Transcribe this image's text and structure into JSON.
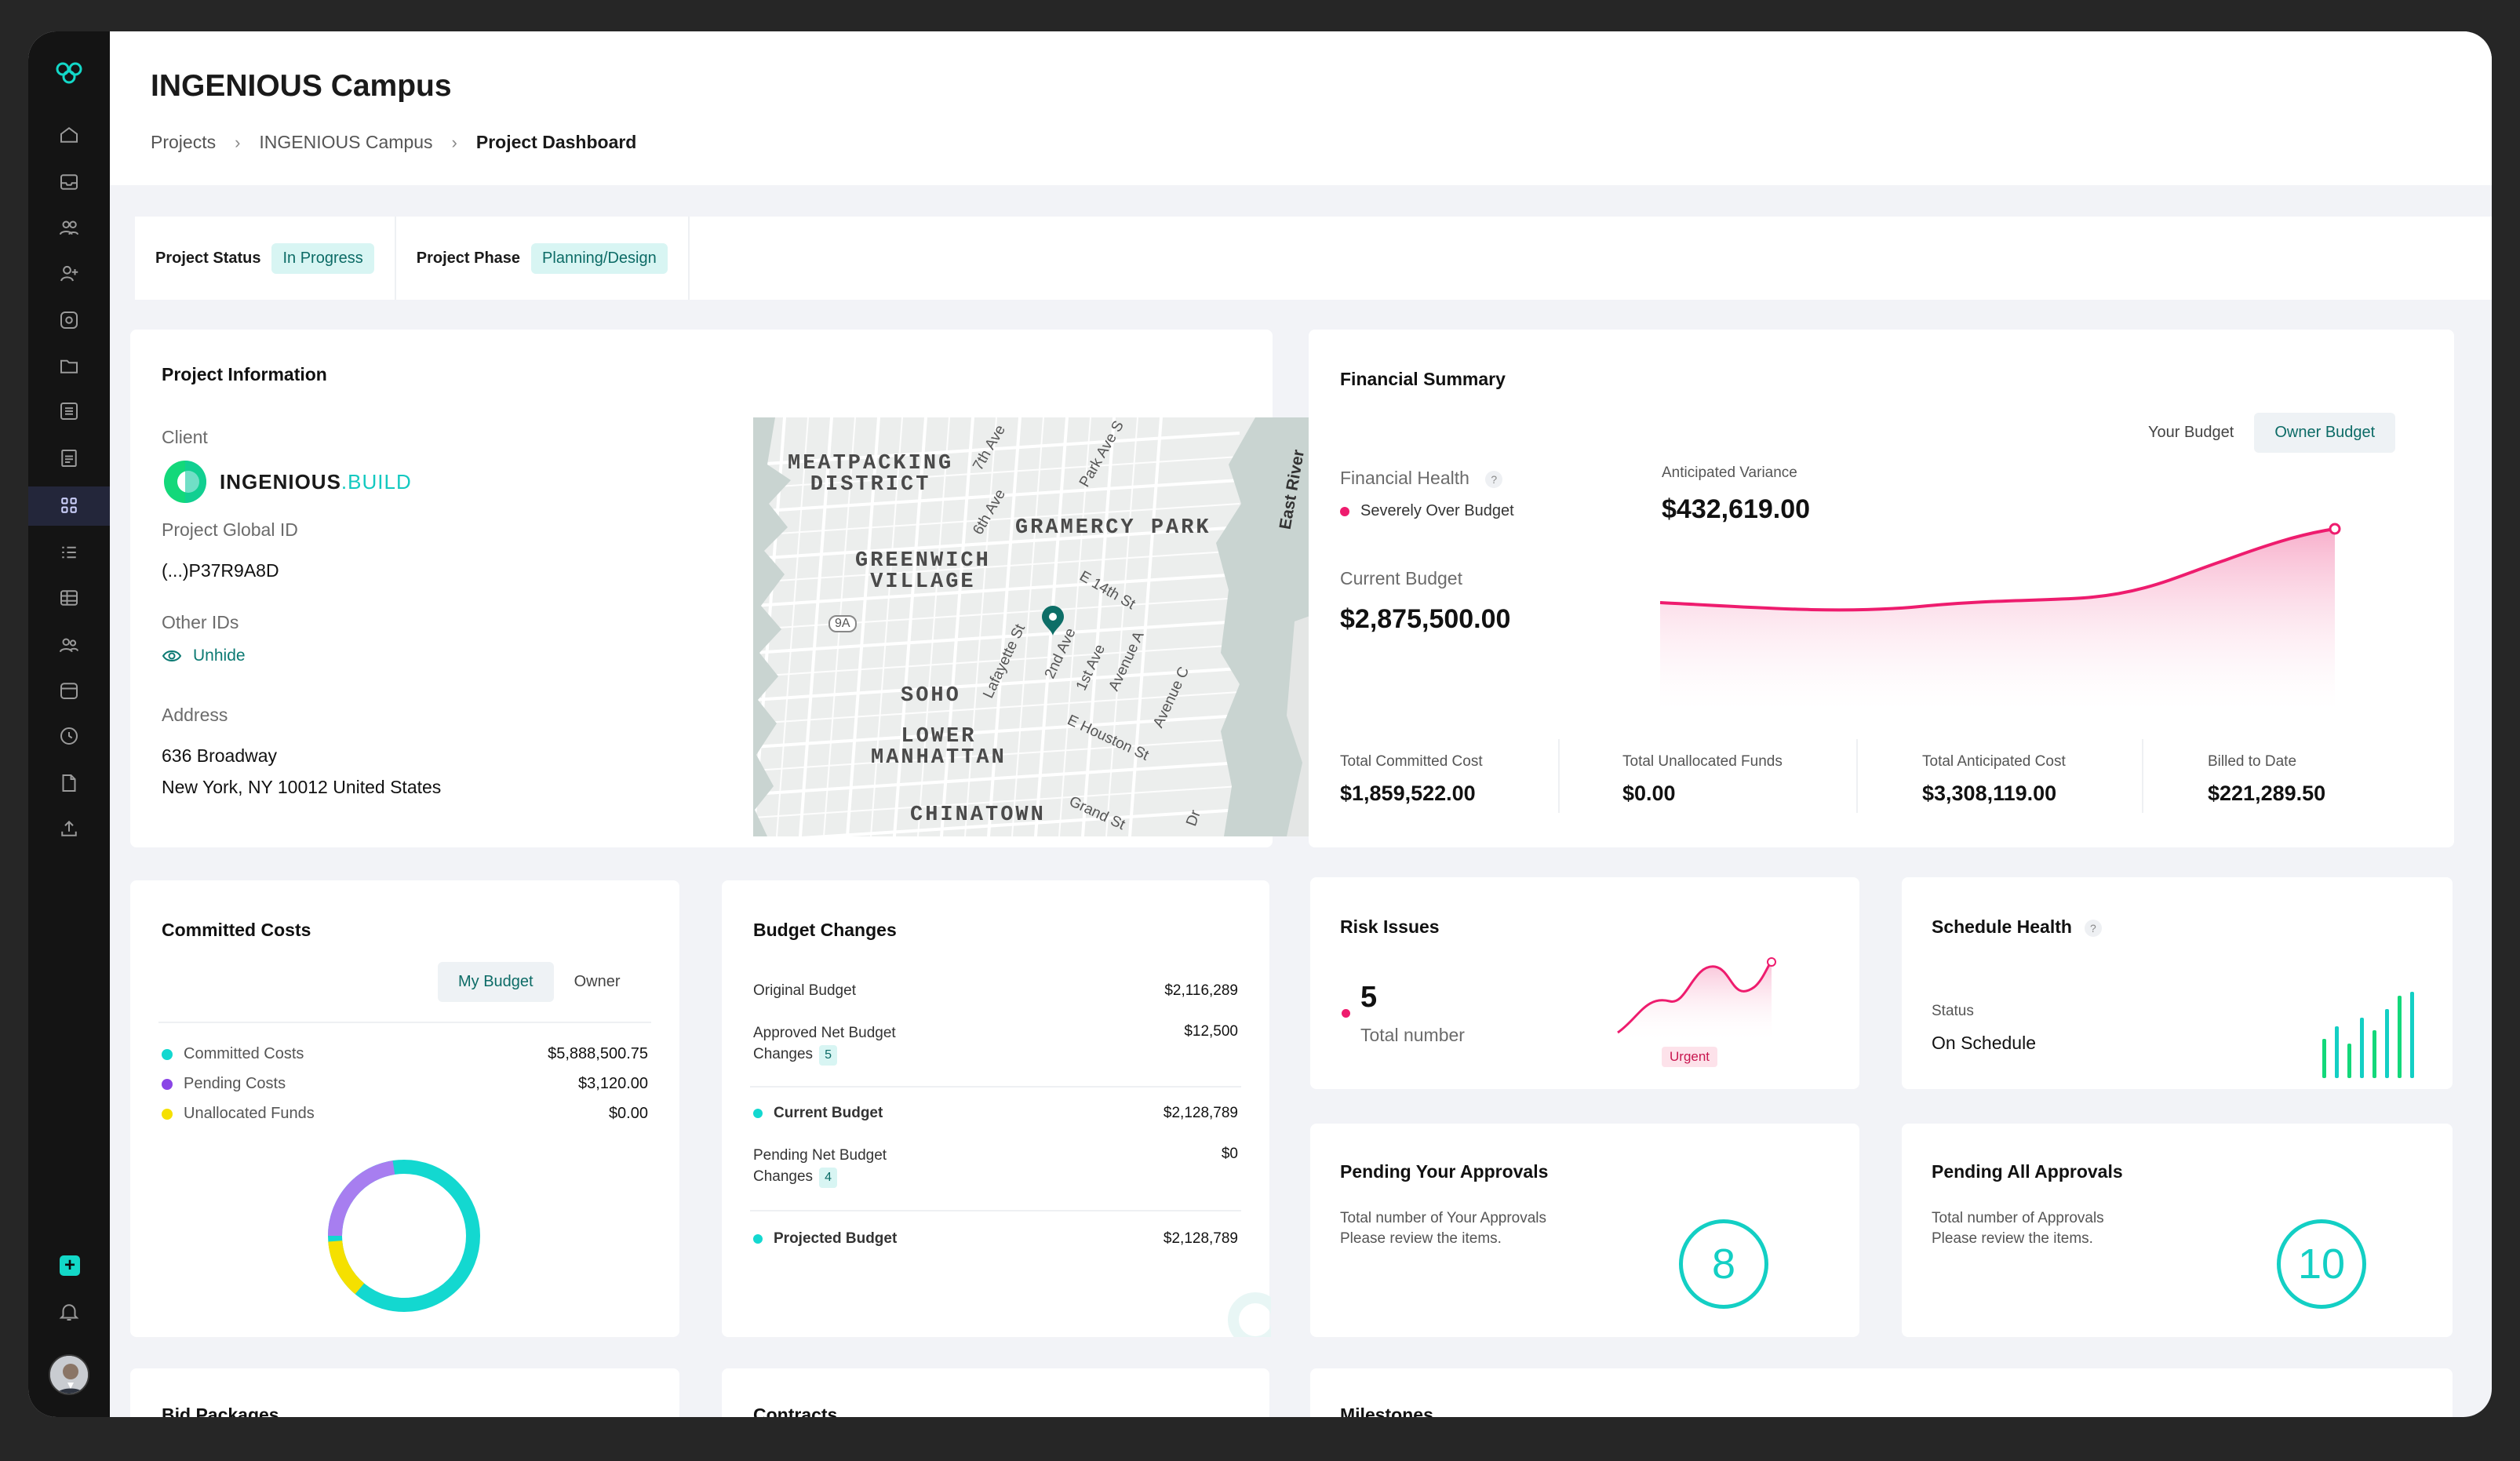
{
  "sidebar": {
    "icons": [
      "logo-icon",
      "home-icon",
      "inbox-icon",
      "team-icon",
      "add-user-icon",
      "settings-icon",
      "folder-icon",
      "list-icon",
      "report-icon",
      "dashboard-icon",
      "checklist-icon",
      "table-icon",
      "people-icon",
      "calendar-icon",
      "clock-icon",
      "document-icon",
      "upload-icon",
      "plus-icon",
      "bell-icon"
    ],
    "active_index": 9
  },
  "header": {
    "title": "INGENIOUS Campus",
    "breadcrumb": [
      "Projects",
      "INGENIOUS Campus",
      "Project Dashboard"
    ]
  },
  "status": {
    "project_status_label": "Project Status",
    "project_status_value": "In Progress",
    "project_phase_label": "Project Phase",
    "project_phase_value": "Planning/Design"
  },
  "project_info": {
    "title": "Project Information",
    "client_label": "Client",
    "client_logo_main": "INGENIOUS",
    "client_logo_suffix": ".BUILD",
    "global_id_label": "Project Global ID",
    "global_id_value": "(...)P37R9A8D",
    "other_ids_label": "Other IDs",
    "unhide_label": "Unhide",
    "address_label": "Address",
    "address_line1": "636 Broadway",
    "address_line2": "New York, NY 10012 United States",
    "map": {
      "districts": [
        "MEATPACKING\nDISTRICT",
        "GRAMERCY PARK",
        "GREENWICH\nVILLAGE",
        "SOHO",
        "LOWER\nMANHATTAN",
        "CHINATOWN"
      ],
      "streets": [
        "7th Ave",
        "Park Ave S",
        "6th Ave",
        "East River",
        "E 14th St",
        "Lafayette St",
        "2nd Ave",
        "1st Ave",
        "Avenue A",
        "Avenue C",
        "E Houston St",
        "Grand St",
        "Dr",
        "9A"
      ]
    }
  },
  "financial": {
    "title": "Financial Summary",
    "toggle": [
      "Your Budget",
      "Owner Budget"
    ],
    "health_label": "Financial Health",
    "health_status": "Severely Over Budget",
    "variance_label": "Anticipated Variance",
    "variance_value": "$432,619.00",
    "current_budget_label": "Current Budget",
    "current_budget_value": "$2,875,500.00",
    "metrics": [
      {
        "label": "Total Committed Cost",
        "value": "$1,859,522.00"
      },
      {
        "label": "Total Unallocated Funds",
        "value": "$0.00"
      },
      {
        "label": "Total Anticipated Cost",
        "value": "$3,308,119.00"
      },
      {
        "label": "Billed to Date",
        "value": "$221,289.50"
      }
    ],
    "colors": {
      "line": "#ee1c6e",
      "fill": "#fbd0e0"
    }
  },
  "committed_costs": {
    "title": "Committed Costs",
    "toggle": [
      "My Budget",
      "Owner"
    ],
    "rows": [
      {
        "label": "Committed Costs",
        "value": "$5,888,500.75",
        "color": "#13d8d0"
      },
      {
        "label": "Pending Costs",
        "value": "$3,120.00",
        "color": "#8a45e6"
      },
      {
        "label": "Unallocated Funds",
        "value": "$0.00",
        "color": "#f5e000"
      }
    ]
  },
  "budget_changes": {
    "title": "Budget Changes",
    "original_label": "Original Budget",
    "original_value": "$2,116,289",
    "approved_label_1": "Approved Net Budget",
    "approved_label_2": "Changes",
    "approved_badge": "5",
    "approved_value": "$12,500",
    "current_label": "Current Budget",
    "current_value": "$2,128,789",
    "pending_label_1": "Pending Net Budget",
    "pending_label_2": "Changes",
    "pending_badge": "4",
    "pending_value": "$0",
    "projected_label": "Projected Budget",
    "projected_value": "$2,128,789"
  },
  "risk": {
    "title": "Risk Issues",
    "count": "5",
    "count_label": "Total number",
    "tag": "Urgent"
  },
  "schedule": {
    "title": "Schedule Health",
    "status_label": "Status",
    "status_value": "On Schedule",
    "bars": [
      0.45,
      0.6,
      0.4,
      0.7,
      0.55,
      0.8,
      0.95,
      1.0
    ]
  },
  "pending_your": {
    "title": "Pending Your Approvals",
    "line1": "Total number of Your Approvals",
    "line2": "Please review the items.",
    "count": "8"
  },
  "pending_all": {
    "title": "Pending All Approvals",
    "line1": "Total number of Approvals",
    "line2": "Please review the items.",
    "count": "10"
  },
  "bottom_cards": [
    "Bid Packages",
    "Contracts",
    "Milestones"
  ]
}
